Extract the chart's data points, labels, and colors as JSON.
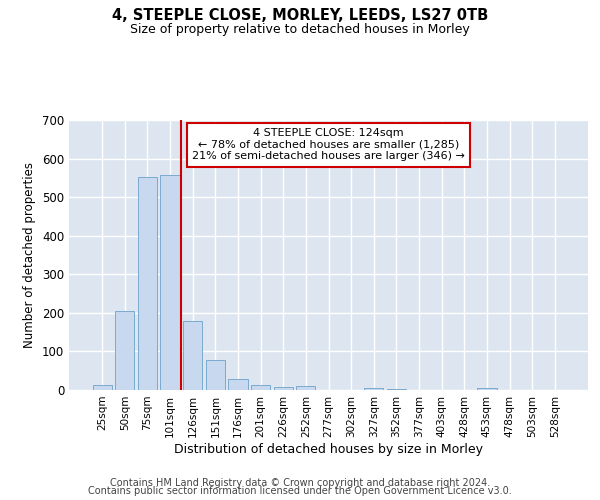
{
  "title": "4, STEEPLE CLOSE, MORLEY, LEEDS, LS27 0TB",
  "subtitle": "Size of property relative to detached houses in Morley",
  "xlabel": "Distribution of detached houses by size in Morley",
  "ylabel": "Number of detached properties",
  "bar_color": "#c8d8ee",
  "bar_edge_color": "#7aaad0",
  "background_color": "#dde5f0",
  "grid_color": "#ffffff",
  "vline_color": "#cc0000",
  "vline_x_index": 4,
  "annotation_line1": "4 STEEPLE CLOSE: 124sqm",
  "annotation_line2": "← 78% of detached houses are smaller (1,285)",
  "annotation_line3": "21% of semi-detached houses are larger (346) →",
  "annotation_box_color": "#cc0000",
  "categories": [
    "25sqm",
    "50sqm",
    "75sqm",
    "101sqm",
    "126sqm",
    "151sqm",
    "176sqm",
    "201sqm",
    "226sqm",
    "252sqm",
    "277sqm",
    "302sqm",
    "327sqm",
    "352sqm",
    "377sqm",
    "403sqm",
    "428sqm",
    "453sqm",
    "478sqm",
    "503sqm",
    "528sqm"
  ],
  "values": [
    12,
    205,
    553,
    558,
    178,
    78,
    28,
    12,
    8,
    10,
    0,
    0,
    5,
    3,
    0,
    0,
    0,
    5,
    0,
    0,
    0
  ],
  "ylim": [
    0,
    700
  ],
  "yticks": [
    0,
    100,
    200,
    300,
    400,
    500,
    600,
    700
  ],
  "footer_line1": "Contains HM Land Registry data © Crown copyright and database right 2024.",
  "footer_line2": "Contains public sector information licensed under the Open Government Licence v3.0."
}
